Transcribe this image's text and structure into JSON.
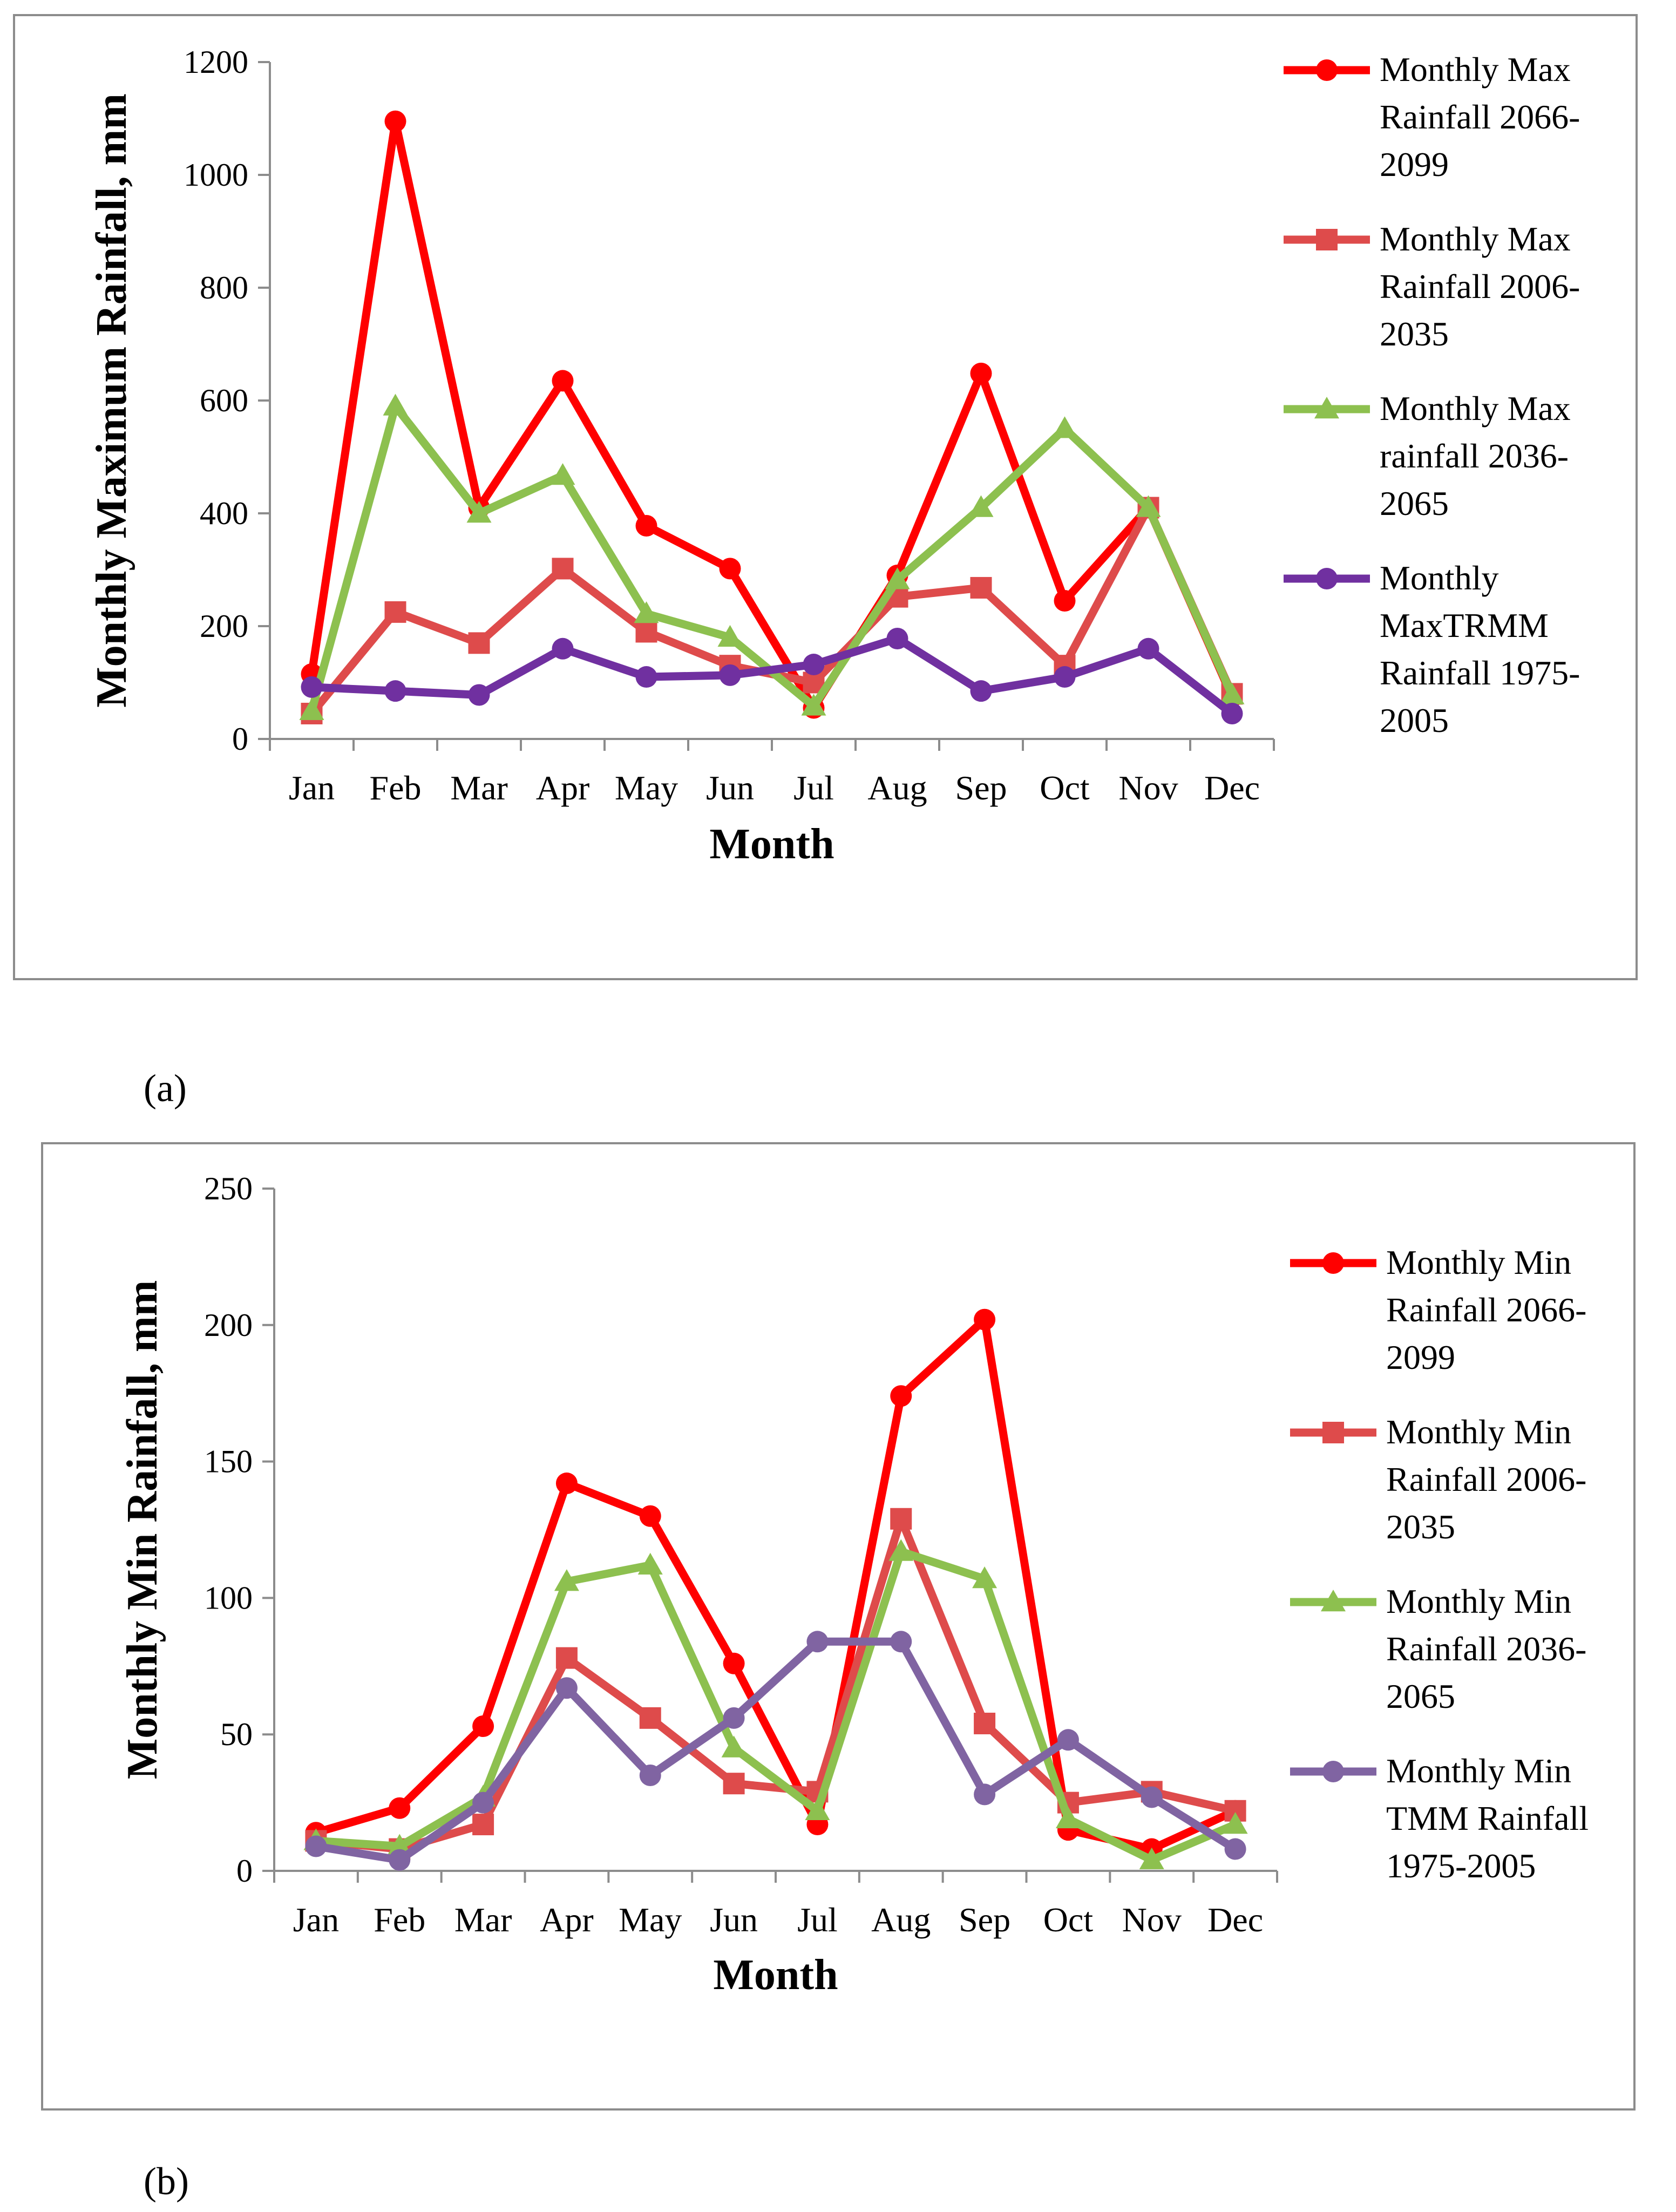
{
  "figure_labels": {
    "a": "(a)",
    "b": "(b)"
  },
  "chart_data": [
    {
      "id": "a",
      "type": "line",
      "title": "",
      "xlabel": "Month",
      "ylabel": "Monthly Maximum Rainfall, mm",
      "ylim": [
        0,
        1200
      ],
      "yticks": [
        "0",
        "200",
        "400",
        "600",
        "800",
        "1000",
        "1200"
      ],
      "ytick_values": [
        0,
        200,
        400,
        600,
        800,
        1000,
        1200
      ],
      "categories": [
        "Jan",
        "Feb",
        "Mar",
        "Apr",
        "May",
        "Jun",
        "Jul",
        "Aug",
        "Sep",
        "Oct",
        "Nov",
        "Dec"
      ],
      "legend_position": "right",
      "series": [
        {
          "name": "Monthly Max Rainfall 2066-2099",
          "legend_lines": [
            "Monthly Max",
            "Rainfall 2066-",
            "2099"
          ],
          "color": "#ff0000",
          "marker": "circle",
          "values": [
            115,
            1095,
            410,
            635,
            378,
            302,
            55,
            290,
            648,
            245,
            410,
            75
          ]
        },
        {
          "name": "Monthly Max Rainfall 2006-2035",
          "legend_lines": [
            "Monthly Max",
            "Rainfall 2006-",
            "2035"
          ],
          "color": "#de4b4b",
          "marker": "square",
          "values": [
            45,
            225,
            170,
            302,
            190,
            130,
            100,
            252,
            268,
            130,
            410,
            80
          ]
        },
        {
          "name": "Monthly Max rainfall 2036-2065",
          "legend_lines": [
            "Monthly Max",
            "rainfall 2036-",
            "2065"
          ],
          "color": "#8dc04f",
          "marker": "triangle",
          "values": [
            50,
            590,
            400,
            467,
            222,
            180,
            58,
            282,
            410,
            550,
            410,
            78
          ]
        },
        {
          "name": "Monthly MaxTRMM Rainfall 1975-2005",
          "legend_lines": [
            "Monthly",
            "MaxTRMM",
            "Rainfall 1975-",
            "2005"
          ],
          "color": "#7030a0",
          "marker": "circle",
          "values": [
            92,
            85,
            78,
            160,
            110,
            113,
            132,
            178,
            85,
            110,
            160,
            45
          ]
        }
      ]
    },
    {
      "id": "b",
      "type": "line",
      "title": "",
      "xlabel": "Month",
      "ylabel": "Monthly Min Rainfall, mm",
      "ylim": [
        0,
        250
      ],
      "yticks": [
        "0",
        "50",
        "100",
        "150",
        "200",
        "250"
      ],
      "ytick_values": [
        0,
        50,
        100,
        150,
        200,
        250
      ],
      "categories": [
        "Jan",
        "Feb",
        "Mar",
        "Apr",
        "May",
        "Jun",
        "Jul",
        "Aug",
        "Sep",
        "Oct",
        "Nov",
        "Dec"
      ],
      "legend_position": "right",
      "series": [
        {
          "name": "Monthly Min Rainfall 2066-2099",
          "legend_lines": [
            "Monthly Min",
            "Rainfall 2066-",
            "2099"
          ],
          "color": "#ff0000",
          "marker": "circle",
          "values": [
            14,
            23,
            53,
            142,
            130,
            76,
            17,
            174,
            202,
            15,
            8,
            22
          ]
        },
        {
          "name": "Monthly Min Rainfall 2006-2035",
          "legend_lines": [
            "Monthly Min",
            "Rainfall 2006-",
            "2035"
          ],
          "color": "#de4b4b",
          "marker": "square",
          "values": [
            11,
            8,
            17,
            78,
            56,
            32,
            29,
            129,
            54,
            25,
            29,
            22
          ]
        },
        {
          "name": "Monthly Min Rainfall 2036-2065",
          "legend_lines": [
            "Monthly Min",
            "Rainfall 2036-",
            "2065"
          ],
          "color": "#8dc04f",
          "marker": "triangle",
          "values": [
            11,
            9,
            27,
            106,
            112,
            45,
            22,
            117,
            107,
            19,
            4,
            17
          ]
        },
        {
          "name": "Monthly Min TMM Rainfall 1975-2005",
          "legend_lines": [
            "Monthly Min",
            "TMM Rainfall",
            "1975-2005"
          ],
          "color": "#8064a2",
          "marker": "circle",
          "values": [
            9,
            4,
            25,
            67,
            35,
            56,
            84,
            84,
            28,
            48,
            27,
            8
          ]
        }
      ]
    }
  ]
}
